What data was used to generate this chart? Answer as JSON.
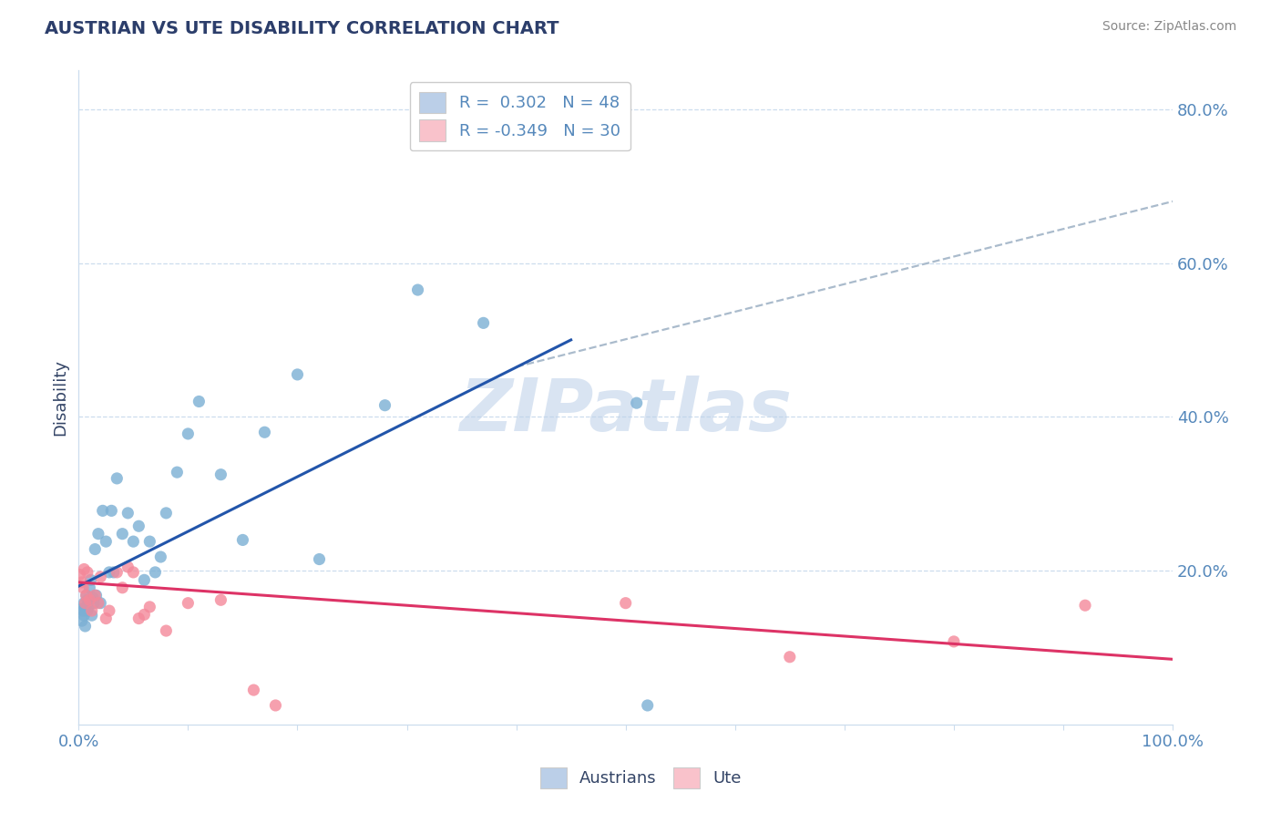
{
  "title": "AUSTRIAN VS UTE DISABILITY CORRELATION CHART",
  "source": "Source: ZipAtlas.com",
  "ylabel": "Disability",
  "xlim": [
    0.0,
    1.0
  ],
  "ylim": [
    0.0,
    0.85
  ],
  "xtick_positions": [
    0.0,
    0.1,
    0.2,
    0.3,
    0.4,
    0.5,
    0.6,
    0.7,
    0.8,
    0.9,
    1.0
  ],
  "xticklabels": [
    "0.0%",
    "",
    "",
    "",
    "",
    "",
    "",
    "",
    "",
    "",
    "100.0%"
  ],
  "ytick_right_labels": [
    "20.0%",
    "40.0%",
    "60.0%",
    "80.0%"
  ],
  "ytick_right_values": [
    0.2,
    0.4,
    0.6,
    0.8
  ],
  "r_austrians": 0.302,
  "n_austrians": 48,
  "r_ute": -0.349,
  "n_ute": 30,
  "blue_scatter_color": "#7BAFD4",
  "pink_scatter_color": "#F4899A",
  "blue_legend_color": "#BBCFE8",
  "pink_legend_color": "#F9C2CB",
  "line_blue": "#2255AA",
  "line_pink": "#DD3366",
  "line_dash_color": "#AABBCC",
  "title_color": "#2C3E6B",
  "axis_label_color": "#334466",
  "tick_color": "#5588BB",
  "source_color": "#888888",
  "watermark_text": "ZIPatlas",
  "watermark_color": "#BBCFE8",
  "grid_color": "#CCDDEE",
  "blue_line_x0": 0.0,
  "blue_line_y0": 0.18,
  "blue_line_x1": 0.45,
  "blue_line_y1": 0.5,
  "dash_line_x0": 0.4,
  "dash_line_y0": 0.465,
  "dash_line_x1": 1.0,
  "dash_line_y1": 0.68,
  "pink_line_x0": 0.0,
  "pink_line_y0": 0.185,
  "pink_line_x1": 1.0,
  "pink_line_y1": 0.085,
  "austrians_x": [
    0.002,
    0.003,
    0.004,
    0.005,
    0.005,
    0.006,
    0.006,
    0.007,
    0.008,
    0.008,
    0.009,
    0.01,
    0.011,
    0.012,
    0.013,
    0.014,
    0.015,
    0.016,
    0.018,
    0.02,
    0.022,
    0.025,
    0.028,
    0.03,
    0.032,
    0.035,
    0.04,
    0.045,
    0.05,
    0.055,
    0.06,
    0.065,
    0.07,
    0.075,
    0.08,
    0.09,
    0.1,
    0.11,
    0.13,
    0.15,
    0.17,
    0.2,
    0.22,
    0.28,
    0.31,
    0.37,
    0.51,
    0.52
  ],
  "austrians_y": [
    0.15,
    0.135,
    0.148,
    0.142,
    0.158,
    0.128,
    0.152,
    0.168,
    0.148,
    0.162,
    0.152,
    0.178,
    0.188,
    0.142,
    0.165,
    0.158,
    0.228,
    0.168,
    0.248,
    0.158,
    0.278,
    0.238,
    0.198,
    0.278,
    0.198,
    0.32,
    0.248,
    0.275,
    0.238,
    0.258,
    0.188,
    0.238,
    0.198,
    0.218,
    0.275,
    0.328,
    0.378,
    0.42,
    0.325,
    0.24,
    0.38,
    0.455,
    0.215,
    0.415,
    0.565,
    0.522,
    0.418,
    0.025
  ],
  "ute_x": [
    0.001,
    0.003,
    0.004,
    0.005,
    0.006,
    0.007,
    0.008,
    0.01,
    0.012,
    0.015,
    0.018,
    0.02,
    0.025,
    0.028,
    0.035,
    0.04,
    0.045,
    0.05,
    0.055,
    0.06,
    0.065,
    0.08,
    0.1,
    0.13,
    0.16,
    0.18,
    0.5,
    0.65,
    0.8,
    0.92
  ],
  "ute_y": [
    0.195,
    0.185,
    0.178,
    0.202,
    0.158,
    0.168,
    0.198,
    0.162,
    0.148,
    0.168,
    0.158,
    0.192,
    0.138,
    0.148,
    0.198,
    0.178,
    0.205,
    0.198,
    0.138,
    0.143,
    0.153,
    0.122,
    0.158,
    0.162,
    0.045,
    0.025,
    0.158,
    0.088,
    0.108,
    0.155
  ]
}
